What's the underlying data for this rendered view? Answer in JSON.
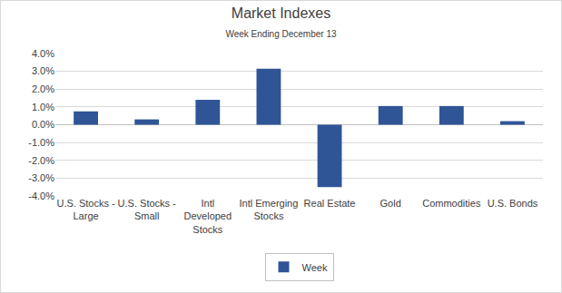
{
  "chart_data": {
    "type": "bar",
    "title": "Market Indexes",
    "subtitle": "Week Ending December 13",
    "categories": [
      "U.S. Stocks - Large",
      "U.S. Stocks - Small",
      "Intl Developed Stocks",
      "Intl Emerging Stocks",
      "Real Estate",
      "Gold",
      "Commodities",
      "U.S. Bonds"
    ],
    "series": [
      {
        "name": "Week",
        "color": "#2f5597",
        "values": [
          0.75,
          0.3,
          1.4,
          3.15,
          -3.5,
          1.05,
          1.05,
          0.2
        ]
      }
    ],
    "ylim": [
      -4,
      4
    ],
    "yticks": [
      {
        "value": -4,
        "label": "-4.0%"
      },
      {
        "value": -3,
        "label": "-3.0%"
      },
      {
        "value": -2,
        "label": "-2.0%"
      },
      {
        "value": -1,
        "label": "-1.0%"
      },
      {
        "value": 0,
        "label": "0.0%"
      },
      {
        "value": 1,
        "label": "1.0%"
      },
      {
        "value": 2,
        "label": "2.0%"
      },
      {
        "value": 3,
        "label": "3.0%"
      },
      {
        "value": 4,
        "label": "4.0%"
      }
    ],
    "grid": true,
    "legend": "bottom"
  }
}
